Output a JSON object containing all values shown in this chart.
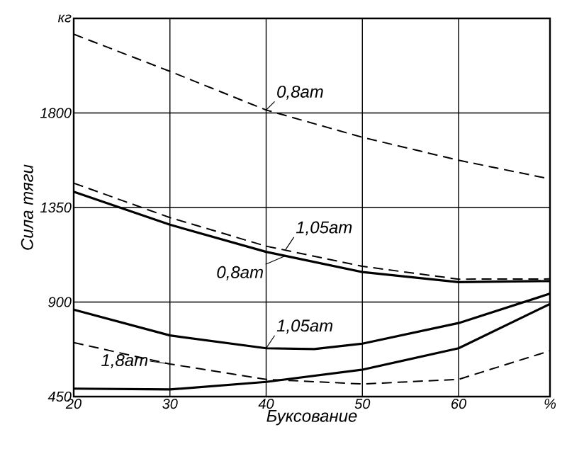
{
  "chart_data": {
    "type": "line",
    "xlabel": "Буксование",
    "ylabel": "Сила тяги",
    "xlim": [
      20,
      69.5
    ],
    "xticks": [
      20,
      30,
      40,
      50,
      60,
      {
        "value": 69.5,
        "label": "%"
      }
    ],
    "ylim": [
      450,
      2250
    ],
    "yticks": [
      450,
      900,
      1350,
      1800,
      {
        "value": 2250,
        "label": "кг"
      }
    ],
    "grid": true,
    "marker": "none",
    "series": [
      {
        "x": [
          20,
          30,
          40,
          50,
          60,
          69.5
        ],
        "values": [
          2175,
          1998,
          1814,
          1684,
          1575,
          1486
        ],
        "color": "#000000",
        "line_style": "dashed"
      },
      {
        "x": [
          20,
          30,
          40,
          50,
          60,
          69.5
        ],
        "values": [
          1466,
          1302,
          1166,
          1070,
          1009,
          1010
        ],
        "color": "#000000",
        "line_style": "dashed"
      },
      {
        "x": [
          20,
          30,
          40,
          50,
          60,
          69.5
        ],
        "values": [
          1425,
          1268,
          1139,
          1043,
          995,
          1000
        ],
        "color": "#000000",
        "line_style": "solid"
      },
      {
        "x": [
          20,
          30,
          40,
          45,
          50,
          60,
          69.5
        ],
        "values": [
          864,
          741,
          680,
          676,
          702,
          800,
          940
        ],
        "color": "#000000",
        "line_style": "solid"
      },
      {
        "x": [
          20,
          30,
          40,
          50,
          60,
          69.5
        ],
        "values": [
          707,
          605,
          532,
          510,
          532,
          668
        ],
        "color": "#000000",
        "line_style": "dashed"
      },
      {
        "x": [
          20,
          30,
          40,
          50,
          60,
          69.5
        ],
        "values": [
          488,
          484,
          520,
          578,
          680,
          891
        ],
        "color": "#000000",
        "line_style": "solid"
      }
    ],
    "annotations": [
      {
        "text": "0,8ат",
        "x": 40,
        "y": 1814
      },
      {
        "text": "1,05ат",
        "x": 42,
        "y": 1148
      },
      {
        "text": "0,8ат",
        "x": 42,
        "y": 1120
      },
      {
        "text": "1,05ат",
        "x": 40,
        "y": 680
      },
      {
        "text": "1,8ат",
        "x": 30,
        "y": 605
      }
    ]
  }
}
